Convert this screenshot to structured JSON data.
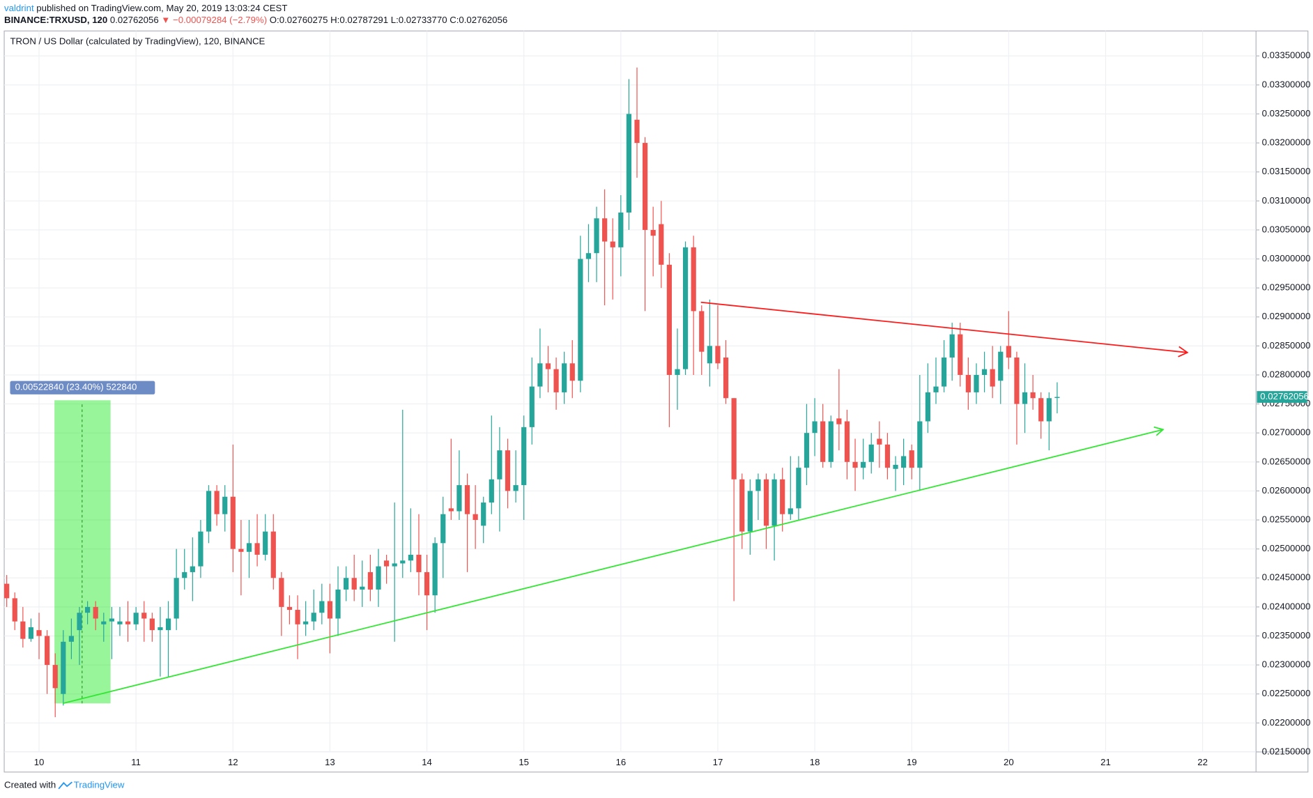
{
  "header": {
    "author": "valdrint",
    "published": "published on TradingView.com, May 20, 2019 13:03:24 CEST",
    "symbol": "BINANCE:TRXUSD, 120",
    "price": "0.02762056",
    "change": "▼ −0.00079284 (−2.79%)",
    "ohlc": "O:0.02760275 H:0.02787291 L:0.02733770 C:0.02762056"
  },
  "footer": {
    "created": "Created with",
    "brand": "TradingView"
  },
  "chart_data": {
    "type": "candlestick",
    "title": "TRON / US Dollar (calculated by TradingView), 120, BINANCE",
    "up_color": "#26a69a",
    "down_color": "#ef5350",
    "open": [
      0.0244,
      0.02415,
      0.02375,
      0.02345,
      0.0236,
      0.0235,
      0.023,
      0.0225,
      0.0234,
      0.0236,
      0.0239,
      0.024,
      0.0237,
      0.02375,
      0.0237,
      0.02375,
      0.0237,
      0.0239,
      0.0238,
      0.0236,
      0.0236,
      0.0238,
      0.0245,
      0.0246,
      0.0247,
      0.0253,
      0.026,
      0.0256,
      0.0259,
      0.025,
      0.02495,
      0.0251,
      0.0249,
      0.0253,
      0.0245,
      0.024,
      0.02395,
      0.0237,
      0.02375,
      0.0239,
      0.0241,
      0.0238,
      0.0243,
      0.0245,
      0.0243,
      0.0246,
      0.0243,
      0.0248,
      0.0247,
      0.02475,
      0.0248,
      0.0249,
      0.0246,
      0.0242,
      0.0251,
      0.0257,
      0.02565,
      0.0261,
      0.0256,
      0.0254,
      0.0258,
      0.0262,
      0.0267,
      0.026,
      0.0261,
      0.0271,
      0.0278,
      0.0282,
      0.0281,
      0.0277,
      0.0282,
      0.0279,
      0.03,
      0.0301,
      0.0307,
      0.0303,
      0.0302,
      0.0308,
      0.0324,
      0.032,
      0.0305,
      0.0306,
      0.0299,
      0.028,
      0.0281,
      0.0302,
      0.0291,
      0.0282,
      0.0285,
      0.0283,
      0.0276,
      0.0262,
      0.0253,
      0.026,
      0.0262,
      0.0254,
      0.0262,
      0.0256,
      0.0257,
      0.0264,
      0.027,
      0.0272,
      0.0265,
      0.02725,
      0.0272,
      0.0265,
      0.0264,
      0.0265,
      0.0269,
      0.0268,
      0.02638,
      0.0264,
      0.0267,
      0.0264,
      0.0272,
      0.0277,
      0.0278,
      0.0283,
      0.0287,
      0.028,
      0.0277,
      0.028,
      0.0281,
      0.0279,
      0.0285,
      0.0283,
      0.0275,
      0.0277,
      0.0276,
      0.0272,
      0.02760275
    ],
    "high": [
      0.02455,
      0.02425,
      0.024,
      0.0238,
      0.0239,
      0.0236,
      0.0232,
      0.0236,
      0.0238,
      0.024,
      0.0241,
      0.0241,
      0.0239,
      0.024,
      0.024,
      0.0241,
      0.024,
      0.0241,
      0.0239,
      0.024,
      0.0241,
      0.025,
      0.025,
      0.0252,
      0.0255,
      0.0261,
      0.0261,
      0.0261,
      0.0268,
      0.0255,
      0.0255,
      0.0256,
      0.0256,
      0.0256,
      0.0246,
      0.0242,
      0.0242,
      0.0241,
      0.0243,
      0.0244,
      0.0244,
      0.0247,
      0.0247,
      0.0249,
      0.0248,
      0.0249,
      0.025,
      0.0249,
      0.0258,
      0.0274,
      0.0257,
      0.0256,
      0.0249,
      0.0252,
      0.0259,
      0.0269,
      0.0267,
      0.0263,
      0.0261,
      0.0259,
      0.0273,
      0.0271,
      0.0269,
      0.0267,
      0.0273,
      0.0283,
      0.0288,
      0.0285,
      0.0283,
      0.0284,
      0.0286,
      0.0304,
      0.0306,
      0.0309,
      0.0312,
      0.0307,
      0.0311,
      0.0331,
      0.0333,
      0.0321,
      0.0309,
      0.031,
      0.0301,
      0.0288,
      0.0303,
      0.0304,
      0.0292,
      0.0293,
      0.0292,
      0.0286,
      0.0276,
      0.0263,
      0.0262,
      0.0263,
      0.0263,
      0.0263,
      0.0264,
      0.0266,
      0.0266,
      0.0275,
      0.0276,
      0.0275,
      0.0273,
      0.0281,
      0.0274,
      0.0269,
      0.0269,
      0.027,
      0.0272,
      0.027,
      0.0266,
      0.0269,
      0.0268,
      0.028,
      0.0282,
      0.0283,
      0.0286,
      0.0289,
      0.0289,
      0.0283,
      0.0282,
      0.0284,
      0.0285,
      0.0285,
      0.0291,
      0.0284,
      0.0282,
      0.028,
      0.0277,
      0.0277,
      0.02787291
    ],
    "low": [
      0.024,
      0.0236,
      0.0233,
      0.0234,
      0.0231,
      0.0225,
      0.0221,
      0.0223,
      0.0231,
      0.023,
      0.0237,
      0.0236,
      0.0234,
      0.0231,
      0.0235,
      0.0234,
      0.0236,
      0.0234,
      0.0234,
      0.0228,
      0.0228,
      0.0236,
      0.0243,
      0.0241,
      0.0245,
      0.0251,
      0.0254,
      0.0253,
      0.0246,
      0.0242,
      0.0245,
      0.0247,
      0.0248,
      0.0243,
      0.0235,
      0.0237,
      0.0231,
      0.0235,
      0.0236,
      0.0237,
      0.0232,
      0.0235,
      0.0241,
      0.0241,
      0.024,
      0.0241,
      0.024,
      0.0244,
      0.0234,
      0.0245,
      0.0246,
      0.0242,
      0.0236,
      0.0239,
      0.0245,
      0.0255,
      0.0255,
      0.0246,
      0.025,
      0.0251,
      0.0256,
      0.0253,
      0.0257,
      0.0258,
      0.0255,
      0.0268,
      0.0276,
      0.0277,
      0.0274,
      0.0275,
      0.0276,
      0.0277,
      0.0296,
      0.0296,
      0.0292,
      0.0293,
      0.0297,
      0.0305,
      0.0314,
      0.0291,
      0.0297,
      0.0295,
      0.0271,
      0.0274,
      0.028,
      0.028,
      0.028,
      0.0278,
      0.0281,
      0.0275,
      0.0241,
      0.025,
      0.0249,
      0.0255,
      0.025,
      0.0248,
      0.0253,
      0.0255,
      0.0255,
      0.0261,
      0.0266,
      0.0264,
      0.0264,
      0.0267,
      0.0262,
      0.026,
      0.0262,
      0.0263,
      0.0264,
      0.0262,
      0.026,
      0.0261,
      0.0262,
      0.026,
      0.027,
      0.0275,
      0.0277,
      0.0279,
      0.0278,
      0.0274,
      0.0275,
      0.0277,
      0.0276,
      0.0275,
      0.0281,
      0.0268,
      0.027,
      0.0274,
      0.0269,
      0.0267,
      0.0273377
    ],
    "close": [
      0.02415,
      0.02375,
      0.02345,
      0.02365,
      0.0235,
      0.023,
      0.0226,
      0.0234,
      0.0235,
      0.0239,
      0.024,
      0.0238,
      0.02375,
      0.0238,
      0.02375,
      0.0237,
      0.0239,
      0.0238,
      0.0236,
      0.02365,
      0.0238,
      0.0245,
      0.0246,
      0.0247,
      0.0253,
      0.026,
      0.0256,
      0.0259,
      0.025,
      0.02495,
      0.0251,
      0.0249,
      0.0253,
      0.0245,
      0.024,
      0.02395,
      0.0237,
      0.02375,
      0.0239,
      0.0241,
      0.0238,
      0.0243,
      0.0245,
      0.0243,
      0.02435,
      0.0243,
      0.0247,
      0.0247,
      0.02475,
      0.0248,
      0.0249,
      0.0246,
      0.0242,
      0.0251,
      0.0256,
      0.02565,
      0.0261,
      0.0256,
      0.0255,
      0.0258,
      0.0262,
      0.0267,
      0.026,
      0.0261,
      0.0271,
      0.0278,
      0.0282,
      0.0281,
      0.0277,
      0.0282,
      0.0279,
      0.03,
      0.0301,
      0.0307,
      0.0303,
      0.0302,
      0.0308,
      0.0325,
      0.032,
      0.0305,
      0.0304,
      0.0299,
      0.028,
      0.0281,
      0.0302,
      0.0291,
      0.0284,
      0.0285,
      0.0282,
      0.0276,
      0.0262,
      0.0253,
      0.026,
      0.0262,
      0.0254,
      0.0262,
      0.0256,
      0.0257,
      0.0264,
      0.027,
      0.0272,
      0.0265,
      0.0272,
      0.02715,
      0.0265,
      0.0264,
      0.0265,
      0.0268,
      0.0268,
      0.0264,
      0.02645,
      0.0266,
      0.0264,
      0.0272,
      0.0277,
      0.0278,
      0.0283,
      0.0287,
      0.028,
      0.0277,
      0.028,
      0.0281,
      0.0278,
      0.0284,
      0.0283,
      0.0275,
      0.0277,
      0.0276,
      0.0272,
      0.0276,
      0.02762056
    ],
    "ylim": [
      0.0215,
      0.03393
    ],
    "yticks": [
      {
        "value": 0.0215,
        "label": "0.02150000"
      },
      {
        "value": 0.022,
        "label": "0.02200000"
      },
      {
        "value": 0.0225,
        "label": "0.02250000"
      },
      {
        "value": 0.023,
        "label": "0.02300000"
      },
      {
        "value": 0.0235,
        "label": "0.02350000"
      },
      {
        "value": 0.024,
        "label": "0.02400000"
      },
      {
        "value": 0.0245,
        "label": "0.02450000"
      },
      {
        "value": 0.025,
        "label": "0.02500000"
      },
      {
        "value": 0.0255,
        "label": "0.02550000"
      },
      {
        "value": 0.026,
        "label": "0.02600000"
      },
      {
        "value": 0.0265,
        "label": "0.02650000"
      },
      {
        "value": 0.027,
        "label": "0.02700000"
      },
      {
        "value": 0.0275,
        "label": "0.02750000"
      },
      {
        "value": 0.028,
        "label": "0.02800000"
      },
      {
        "value": 0.0285,
        "label": "0.02850000"
      },
      {
        "value": 0.029,
        "label": "0.02900000"
      },
      {
        "value": 0.0295,
        "label": "0.02950000"
      },
      {
        "value": 0.03,
        "label": "0.03000000"
      },
      {
        "value": 0.0305,
        "label": "0.03050000"
      },
      {
        "value": 0.031,
        "label": "0.03100000"
      },
      {
        "value": 0.0315,
        "label": "0.03150000"
      },
      {
        "value": 0.032,
        "label": "0.03200000"
      },
      {
        "value": 0.0325,
        "label": "0.03250000"
      },
      {
        "value": 0.033,
        "label": "0.03300000"
      },
      {
        "value": 0.0335,
        "label": "0.03350000"
      }
    ],
    "xtick_labels": [
      "10",
      "11",
      "12",
      "13",
      "14",
      "15",
      "16",
      "17",
      "18",
      "19",
      "20",
      "21",
      "22"
    ],
    "last_price": {
      "value": 0.02762056,
      "label": "0.02762056"
    },
    "measure_label": "0.00522840 (23.40%) 522840",
    "grid": true
  }
}
